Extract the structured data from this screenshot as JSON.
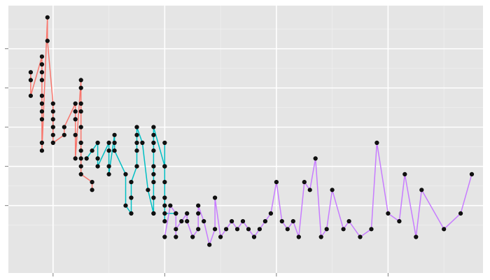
{
  "chart_data": {
    "type": "line",
    "title": "",
    "xlabel": "",
    "ylabel": "",
    "xlim": [
      -8,
      77
    ],
    "ylim": [
      -3.6,
      30.5
    ],
    "x_breaks": [
      0,
      20,
      40,
      60,
      80,
      100
    ],
    "y_breaks": [
      5,
      10,
      15,
      20,
      25
    ],
    "grid": true,
    "legend": "none",
    "colors": [
      "#f8766d",
      "#00bfc4",
      "#c77cff"
    ],
    "series": [
      {
        "color": "#f8766d",
        "points": [
          [
            -4,
            22
          ],
          [
            -4,
            21
          ],
          [
            -4,
            19
          ],
          [
            -2,
            24
          ],
          [
            -2,
            23
          ],
          [
            -2,
            22
          ],
          [
            -2,
            21
          ],
          [
            -2,
            19
          ],
          [
            -2,
            18
          ],
          [
            -2,
            17
          ],
          [
            -2,
            16
          ],
          [
            -2,
            13
          ],
          [
            -2,
            12
          ],
          [
            -1,
            29
          ],
          [
            -1,
            26
          ],
          [
            0,
            18
          ],
          [
            0,
            17
          ],
          [
            0,
            16
          ],
          [
            0,
            15
          ],
          [
            0,
            14
          ],
          [
            0,
            13
          ],
          [
            2,
            14
          ],
          [
            2,
            15
          ],
          [
            4,
            18
          ],
          [
            4,
            17
          ],
          [
            4,
            16
          ],
          [
            4,
            14
          ],
          [
            4,
            11
          ],
          [
            5,
            21
          ],
          [
            5,
            20
          ],
          [
            5,
            18
          ],
          [
            5,
            17
          ],
          [
            5,
            15
          ],
          [
            5,
            13
          ],
          [
            5,
            12
          ],
          [
            5,
            11
          ],
          [
            5,
            10
          ],
          [
            5,
            9
          ],
          [
            7,
            8
          ],
          [
            7,
            7
          ]
        ]
      },
      {
        "color": "#00bfc4",
        "points": [
          [
            6,
            11
          ],
          [
            7,
            12
          ],
          [
            8,
            13
          ],
          [
            8,
            11
          ],
          [
            8,
            10
          ],
          [
            10,
            13
          ],
          [
            10,
            12
          ],
          [
            10,
            10
          ],
          [
            10,
            9
          ],
          [
            11,
            14
          ],
          [
            11,
            13
          ],
          [
            11,
            12
          ],
          [
            13,
            9
          ],
          [
            13,
            5
          ],
          [
            14,
            4
          ],
          [
            14,
            6
          ],
          [
            14,
            8
          ],
          [
            15,
            10
          ],
          [
            15,
            12
          ],
          [
            15,
            13
          ],
          [
            15,
            14
          ],
          [
            15,
            15
          ],
          [
            16,
            13
          ],
          [
            17,
            7
          ],
          [
            18,
            4
          ],
          [
            18,
            4
          ],
          [
            18,
            6
          ],
          [
            18,
            8
          ],
          [
            18,
            9
          ],
          [
            18,
            10
          ],
          [
            18,
            12
          ],
          [
            18,
            13
          ],
          [
            18,
            14
          ],
          [
            18,
            15
          ],
          [
            20,
            10
          ],
          [
            20,
            13
          ],
          [
            20,
            10
          ],
          [
            20,
            8
          ],
          [
            20,
            6
          ],
          [
            20,
            5
          ],
          [
            20,
            3
          ],
          [
            20,
            4
          ],
          [
            22,
            4
          ]
        ]
      },
      {
        "color": "#c77cff",
        "points": [
          [
            20,
            1
          ],
          [
            21,
            5
          ],
          [
            22,
            4
          ],
          [
            22,
            1
          ],
          [
            22,
            2
          ],
          [
            23,
            3
          ],
          [
            24,
            4
          ],
          [
            24,
            3
          ],
          [
            25,
            1
          ],
          [
            26,
            2
          ],
          [
            26,
            4
          ],
          [
            26,
            5
          ],
          [
            27,
            3
          ],
          [
            28,
            0
          ],
          [
            29,
            2
          ],
          [
            29,
            6
          ],
          [
            30,
            1
          ],
          [
            31,
            2
          ],
          [
            32,
            3
          ],
          [
            33,
            2
          ],
          [
            34,
            3
          ],
          [
            35,
            2
          ],
          [
            36,
            1
          ],
          [
            37,
            2
          ],
          [
            38,
            3
          ],
          [
            39,
            4
          ],
          [
            40,
            8
          ],
          [
            41,
            3
          ],
          [
            42,
            2
          ],
          [
            43,
            3
          ],
          [
            44,
            1
          ],
          [
            45,
            8
          ],
          [
            46,
            7
          ],
          [
            47,
            11
          ],
          [
            48,
            1
          ],
          [
            49,
            2
          ],
          [
            50,
            7
          ],
          [
            52,
            2
          ],
          [
            53,
            3
          ],
          [
            55,
            1
          ],
          [
            57,
            2
          ],
          [
            58,
            13
          ],
          [
            60,
            4
          ],
          [
            62,
            3
          ],
          [
            63,
            9
          ],
          [
            65,
            1
          ],
          [
            66,
            7
          ],
          [
            70,
            2
          ],
          [
            73,
            4
          ],
          [
            75,
            9
          ]
        ]
      }
    ]
  }
}
